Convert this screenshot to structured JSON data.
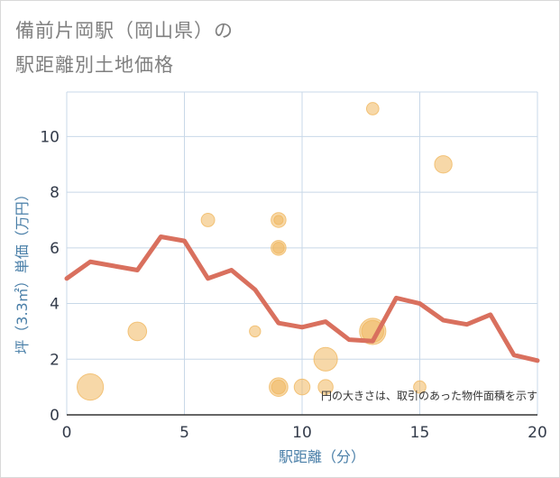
{
  "title_line1": "備前片岡駅（岡山県）の",
  "title_line2": "駅距離別土地価格",
  "chart_data": {
    "type": "scatter+line",
    "xlabel": "駅距離（分）",
    "ylabel": "坪（3.3㎡）単価（万円）",
    "xlim": [
      0,
      20
    ],
    "ylim": [
      0,
      11.6
    ],
    "xticks": [
      0,
      5,
      10,
      15,
      20
    ],
    "yticks": [
      0,
      2,
      4,
      6,
      8,
      10
    ],
    "note": "円の大きさは、取引のあった物件面積を示す",
    "colors": {
      "line": "#d9705e",
      "bubble": "#f0b860",
      "grid": "#c8d8e8"
    },
    "line": {
      "x": [
        0,
        1,
        2,
        3,
        4,
        5,
        6,
        7,
        8,
        9,
        10,
        11,
        12,
        13,
        14,
        15,
        16,
        17,
        18,
        19,
        20
      ],
      "y": [
        4.9,
        5.5,
        5.35,
        5.2,
        6.4,
        6.25,
        4.9,
        5.2,
        4.5,
        3.3,
        3.15,
        3.35,
        2.7,
        2.65,
        4.2,
        4.0,
        3.4,
        3.25,
        3.6,
        2.15,
        1.95
      ]
    },
    "bubbles": [
      {
        "x": 1,
        "y": 1.0,
        "size": 5
      },
      {
        "x": 3,
        "y": 3.0,
        "size": 2.5
      },
      {
        "x": 6,
        "y": 7.0,
        "size": 1.3
      },
      {
        "x": 8,
        "y": 3.0,
        "size": 0.9
      },
      {
        "x": 9,
        "y": 7.0,
        "size": 1.6
      },
      {
        "x": 9,
        "y": 7.0,
        "size": 0.6
      },
      {
        "x": 9,
        "y": 6.0,
        "size": 1.6
      },
      {
        "x": 9,
        "y": 6.0,
        "size": 0.9
      },
      {
        "x": 9,
        "y": 1.0,
        "size": 2.5
      },
      {
        "x": 9,
        "y": 1.0,
        "size": 1.4
      },
      {
        "x": 10,
        "y": 1.0,
        "size": 1.8
      },
      {
        "x": 11,
        "y": 1.0,
        "size": 1.6
      },
      {
        "x": 11,
        "y": 2.0,
        "size": 4
      },
      {
        "x": 13,
        "y": 11.0,
        "size": 1.1
      },
      {
        "x": 13,
        "y": 3.0,
        "size": 5
      },
      {
        "x": 13,
        "y": 3.0,
        "size": 3.5
      },
      {
        "x": 15,
        "y": 1.0,
        "size": 1.1
      },
      {
        "x": 16,
        "y": 9.0,
        "size": 2.2
      }
    ]
  }
}
